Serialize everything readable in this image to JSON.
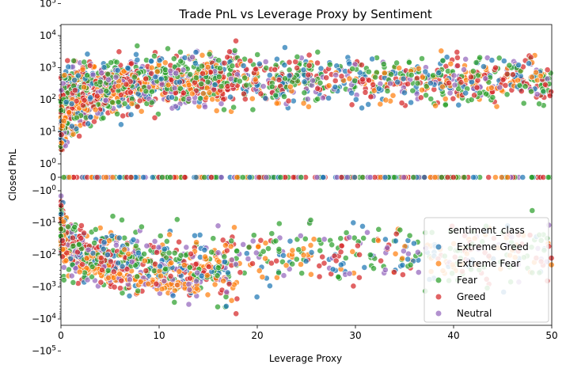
{
  "chart_data": {
    "type": "scatter",
    "title": "Trade PnL vs Leverage Proxy by Sentiment",
    "xlabel": "Leverage Proxy",
    "ylabel": "Closed PnL",
    "xlim": [
      0,
      50
    ],
    "ylim": [
      -150000,
      150000
    ],
    "yscale": "symlog",
    "ytick_labels": [
      "10^5",
      "10^4",
      "10^3",
      "10^2",
      "10^1",
      "10^0",
      "0",
      "-10^0",
      "-10^1",
      "-10^2",
      "-10^3",
      "-10^4",
      "-10^5"
    ],
    "xticks": [
      0,
      10,
      20,
      30,
      40,
      50
    ],
    "grid": false,
    "legend": {
      "title": "sentiment_class",
      "placement": "lower-right"
    },
    "series": [
      {
        "name": "Extreme Greed",
        "color": "#1f77b4"
      },
      {
        "name": "Extreme Fear",
        "color": "#ff7f0e"
      },
      {
        "name": "Fear",
        "color": "#2ca02c"
      },
      {
        "name": "Greed",
        "color": "#d62728"
      },
      {
        "name": "Neutral",
        "color": "#9467bd"
      }
    ]
  }
}
